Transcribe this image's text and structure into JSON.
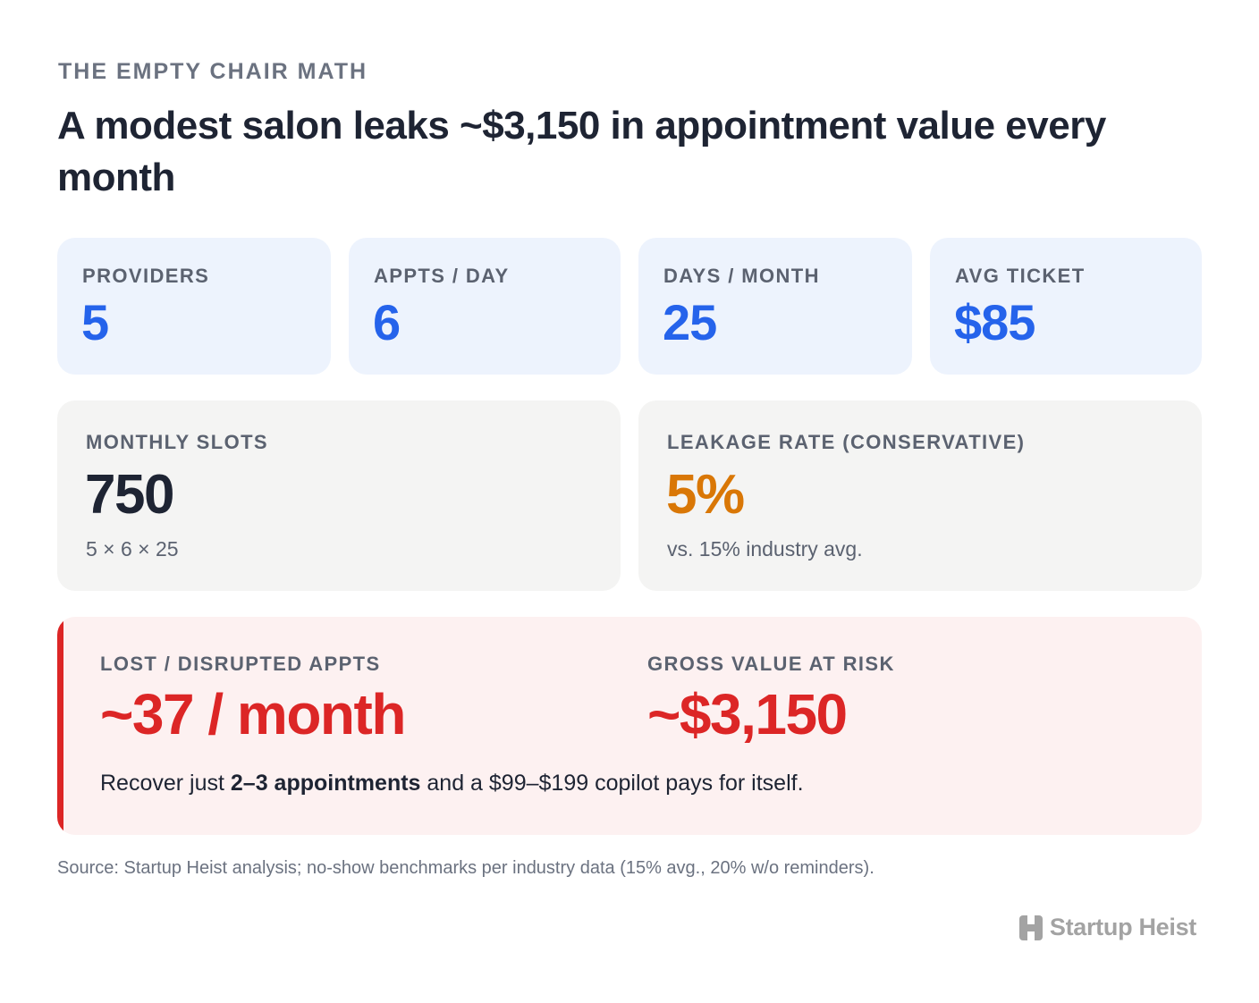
{
  "eyebrow": "THE EMPTY CHAIR MATH",
  "title": "A modest salon leaks ~$3,150 in appointment value every month",
  "inputs": [
    {
      "label": "PROVIDERS",
      "value": "5"
    },
    {
      "label": "APPTS / DAY",
      "value": "6"
    },
    {
      "label": "DAYS / MONTH",
      "value": "25"
    },
    {
      "label": "AVG TICKET",
      "value": "$85"
    }
  ],
  "monthly_slots": {
    "label": "MONTHLY SLOTS",
    "value": "750",
    "sub": "5 × 6 × 25"
  },
  "leakage": {
    "label": "LEAKAGE RATE (CONSERVATIVE)",
    "value": "5%",
    "sub": "vs. 15% industry avg."
  },
  "risk": {
    "lost_label": "LOST / DISRUPTED APPTS",
    "lost_value": "~37 / month",
    "value_label": "GROSS VALUE AT RISK",
    "value_value": "~$3,150",
    "note_before": "Recover just ",
    "note_bold": "2–3 appointments",
    "note_after": " and a $99–$199 copilot pays for itself."
  },
  "source": "Source: Startup Heist analysis; no-show benchmarks per industry data (15% avg., 20% w/o reminders).",
  "brand": {
    "name": "Startup Heist",
    "icon": "heist-logo-icon"
  },
  "colors": {
    "accent_blue": "#2563eb",
    "accent_orange": "#d97706",
    "accent_red": "#dc2626"
  }
}
